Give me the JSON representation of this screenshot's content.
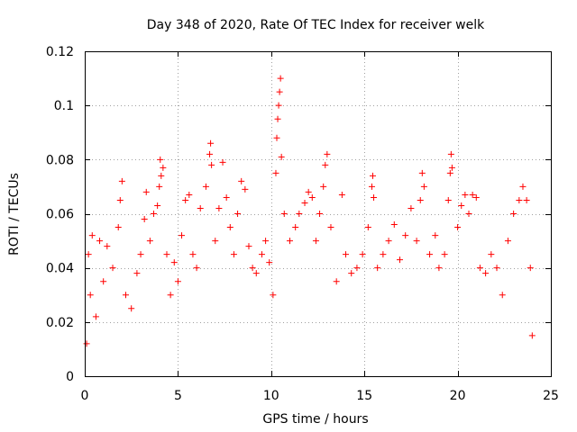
{
  "chart_data": {
    "type": "scatter",
    "title": "Day 348 of 2020, Rate Of TEC Index for receiver welk",
    "xlabel": "GPS time / hours",
    "ylabel": "ROTI / TECUs",
    "xlim": [
      0,
      25
    ],
    "ylim": [
      0,
      0.12
    ],
    "xticks": [
      0,
      5,
      10,
      15,
      20,
      25
    ],
    "xtick_labels": [
      "0",
      "5",
      "10",
      "15",
      "20",
      "25"
    ],
    "yticks": [
      0,
      0.02,
      0.04,
      0.06,
      0.08,
      0.1,
      0.12
    ],
    "ytick_labels": [
      "0",
      "0.02",
      "0.04",
      "0.06",
      "0.08",
      "0.1",
      "0.12"
    ],
    "grid": true,
    "legend": "none",
    "marker": "plus",
    "series": [
      {
        "color": "#ff0000",
        "points": [
          [
            0.1,
            0.012
          ],
          [
            0.2,
            0.045
          ],
          [
            0.3,
            0.03
          ],
          [
            0.4,
            0.052
          ],
          [
            0.6,
            0.022
          ],
          [
            0.8,
            0.05
          ],
          [
            1.0,
            0.035
          ],
          [
            1.2,
            0.048
          ],
          [
            1.5,
            0.04
          ],
          [
            1.8,
            0.055
          ],
          [
            1.9,
            0.065
          ],
          [
            2.0,
            0.072
          ],
          [
            2.2,
            0.03
          ],
          [
            2.5,
            0.025
          ],
          [
            2.8,
            0.038
          ],
          [
            3.0,
            0.045
          ],
          [
            3.2,
            0.058
          ],
          [
            3.3,
            0.068
          ],
          [
            3.5,
            0.05
          ],
          [
            3.7,
            0.06
          ],
          [
            3.9,
            0.063
          ],
          [
            4.0,
            0.07
          ],
          [
            4.05,
            0.08
          ],
          [
            4.1,
            0.074
          ],
          [
            4.2,
            0.077
          ],
          [
            4.4,
            0.045
          ],
          [
            4.6,
            0.03
          ],
          [
            4.8,
            0.042
          ],
          [
            5.0,
            0.035
          ],
          [
            5.2,
            0.052
          ],
          [
            5.4,
            0.065
          ],
          [
            5.6,
            0.067
          ],
          [
            5.8,
            0.045
          ],
          [
            6.0,
            0.04
          ],
          [
            6.2,
            0.062
          ],
          [
            6.5,
            0.07
          ],
          [
            6.7,
            0.082
          ],
          [
            6.75,
            0.086
          ],
          [
            6.8,
            0.078
          ],
          [
            7.0,
            0.05
          ],
          [
            7.2,
            0.062
          ],
          [
            7.4,
            0.079
          ],
          [
            7.6,
            0.066
          ],
          [
            7.8,
            0.055
          ],
          [
            8.0,
            0.045
          ],
          [
            8.2,
            0.06
          ],
          [
            8.4,
            0.072
          ],
          [
            8.6,
            0.069
          ],
          [
            8.8,
            0.048
          ],
          [
            9.0,
            0.04
          ],
          [
            9.2,
            0.038
          ],
          [
            9.5,
            0.045
          ],
          [
            9.7,
            0.05
          ],
          [
            9.9,
            0.042
          ],
          [
            10.1,
            0.03
          ],
          [
            10.25,
            0.075
          ],
          [
            10.3,
            0.088
          ],
          [
            10.35,
            0.095
          ],
          [
            10.4,
            0.1
          ],
          [
            10.45,
            0.105
          ],
          [
            10.5,
            0.11
          ],
          [
            10.55,
            0.081
          ],
          [
            10.7,
            0.06
          ],
          [
            11.0,
            0.05
          ],
          [
            11.3,
            0.055
          ],
          [
            11.5,
            0.06
          ],
          [
            11.8,
            0.064
          ],
          [
            12.0,
            0.068
          ],
          [
            12.2,
            0.066
          ],
          [
            12.4,
            0.05
          ],
          [
            12.6,
            0.06
          ],
          [
            12.8,
            0.07
          ],
          [
            12.9,
            0.078
          ],
          [
            13.0,
            0.082
          ],
          [
            13.2,
            0.055
          ],
          [
            13.5,
            0.035
          ],
          [
            13.8,
            0.067
          ],
          [
            14.0,
            0.045
          ],
          [
            14.3,
            0.038
          ],
          [
            14.6,
            0.04
          ],
          [
            14.9,
            0.045
          ],
          [
            15.2,
            0.055
          ],
          [
            15.4,
            0.07
          ],
          [
            15.45,
            0.074
          ],
          [
            15.5,
            0.066
          ],
          [
            15.7,
            0.04
          ],
          [
            16.0,
            0.045
          ],
          [
            16.3,
            0.05
          ],
          [
            16.6,
            0.056
          ],
          [
            16.9,
            0.043
          ],
          [
            17.2,
            0.052
          ],
          [
            17.5,
            0.062
          ],
          [
            17.8,
            0.05
          ],
          [
            18.0,
            0.065
          ],
          [
            18.1,
            0.075
          ],
          [
            18.2,
            0.07
          ],
          [
            18.5,
            0.045
          ],
          [
            18.8,
            0.052
          ],
          [
            19.0,
            0.04
          ],
          [
            19.3,
            0.045
          ],
          [
            19.5,
            0.065
          ],
          [
            19.6,
            0.075
          ],
          [
            19.65,
            0.082
          ],
          [
            19.7,
            0.077
          ],
          [
            20.0,
            0.055
          ],
          [
            20.2,
            0.063
          ],
          [
            20.4,
            0.067
          ],
          [
            20.6,
            0.06
          ],
          [
            20.8,
            0.067
          ],
          [
            21.0,
            0.066
          ],
          [
            21.2,
            0.04
          ],
          [
            21.5,
            0.038
          ],
          [
            21.8,
            0.045
          ],
          [
            22.1,
            0.04
          ],
          [
            22.4,
            0.03
          ],
          [
            22.7,
            0.05
          ],
          [
            23.0,
            0.06
          ],
          [
            23.3,
            0.065
          ],
          [
            23.5,
            0.07
          ],
          [
            23.7,
            0.065
          ],
          [
            23.9,
            0.04
          ],
          [
            24.0,
            0.015
          ]
        ]
      }
    ]
  }
}
